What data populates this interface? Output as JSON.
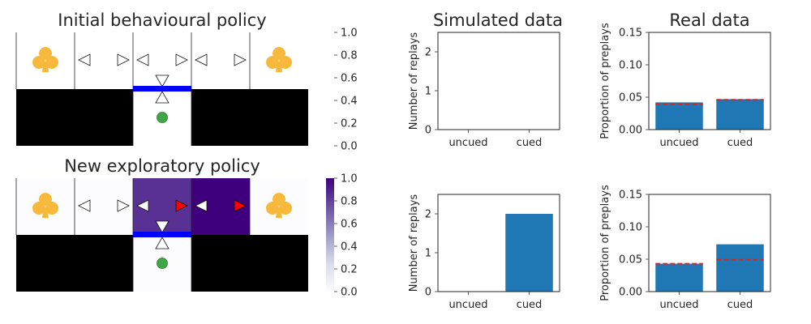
{
  "policy_panels": [
    {
      "title": "Initial behavioural policy",
      "colorbar_ticks": [
        "0.0",
        "0.2",
        "0.4",
        "0.6",
        "0.8",
        "1.0"
      ],
      "colormap": "white-only",
      "cell_values": [
        0,
        0,
        0,
        0,
        0
      ],
      "highlighted_arrows": [],
      "reward_icon": "club-icon",
      "reward_color": "#f6b93b",
      "agent_color": "#3fa648",
      "barrier_color": "#0000ff"
    },
    {
      "title": "New exploratory policy",
      "colorbar_ticks": [
        "0.0",
        "0.2",
        "0.4",
        "0.6",
        "0.8",
        "1.0"
      ],
      "colormap": "purples",
      "cell_values": [
        0,
        0,
        0.85,
        1.0,
        0
      ],
      "highlighted_arrows": [
        "cell3-right",
        "cell4-right"
      ],
      "highlight_color": "#ff0000",
      "reward_icon": "club-icon",
      "reward_color": "#f6b93b",
      "agent_color": "#3fa648",
      "barrier_color": "#0000ff"
    }
  ],
  "chart_data": [
    {
      "type": "bar",
      "title": "Simulated data",
      "categories": [
        "uncued",
        "cued"
      ],
      "values": [
        0,
        0
      ],
      "ylabel": "Number of replays",
      "ylim": [
        0,
        2.5
      ],
      "yticks": [
        "0",
        "1",
        "2"
      ],
      "bar_color": "#1f77b4"
    },
    {
      "type": "bar",
      "title": "Real data",
      "categories": [
        "uncued",
        "cued"
      ],
      "values": [
        0.042,
        0.047
      ],
      "reference_values": [
        0.039,
        0.046
      ],
      "ylabel": "Proportion of preplays",
      "ylim": [
        0,
        0.15
      ],
      "yticks": [
        "0.00",
        "0.05",
        "0.10",
        "0.15"
      ],
      "bar_color": "#1f77b4",
      "reference_color": "#d62728"
    },
    {
      "type": "bar",
      "title": "",
      "categories": [
        "uncued",
        "cued"
      ],
      "values": [
        0,
        2
      ],
      "ylabel": "Number of replays",
      "ylim": [
        0,
        2.5
      ],
      "yticks": [
        "0",
        "1",
        "2"
      ],
      "bar_color": "#1f77b4"
    },
    {
      "type": "bar",
      "title": "",
      "categories": [
        "uncued",
        "cued"
      ],
      "values": [
        0.043,
        0.073
      ],
      "reference_values": [
        0.043,
        0.049
      ],
      "ylabel": "Proportion of preplays",
      "ylim": [
        0,
        0.15
      ],
      "yticks": [
        "0.00",
        "0.05",
        "0.10",
        "0.15"
      ],
      "bar_color": "#1f77b4",
      "reference_color": "#d62728"
    }
  ]
}
